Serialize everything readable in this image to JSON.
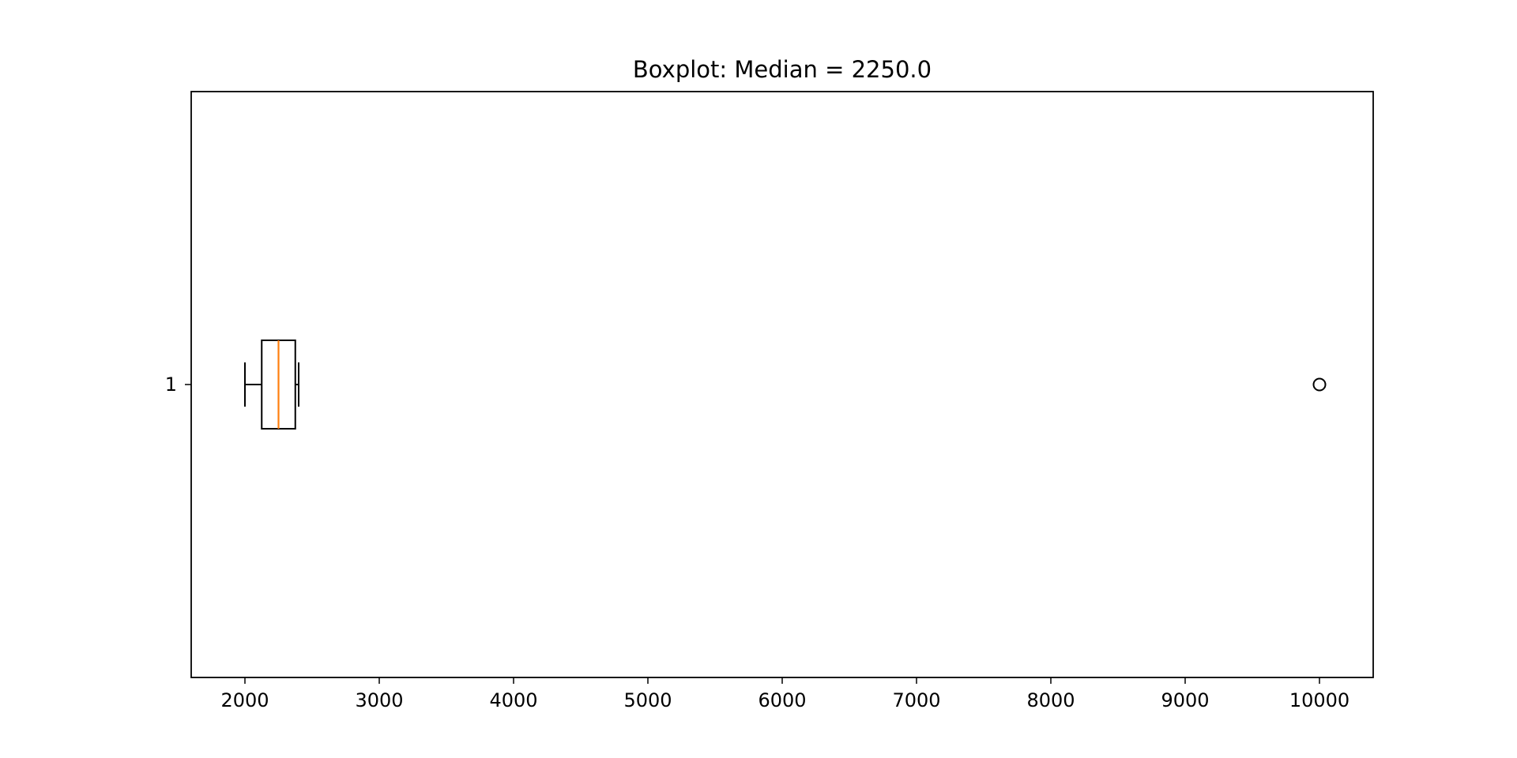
{
  "chart_data": {
    "type": "boxplot",
    "orientation": "horizontal",
    "title": "Boxplot: Median = 2250.0",
    "xlabel": "",
    "ylabel": "",
    "xlim": [
      1600,
      10400
    ],
    "xticks": [
      2000,
      3000,
      4000,
      5000,
      6000,
      7000,
      8000,
      9000,
      10000
    ],
    "xtick_labels": [
      "2000",
      "3000",
      "4000",
      "5000",
      "6000",
      "7000",
      "8000",
      "9000",
      "10000"
    ],
    "categories": [
      "1"
    ],
    "boxes": [
      {
        "category": "1",
        "whisker_low": 2000,
        "q1": 2125,
        "median": 2250,
        "q3": 2375,
        "whisker_high": 2400,
        "outliers": [
          10000
        ]
      }
    ],
    "grid": false,
    "legend": "none",
    "colors": {
      "box": "#000000",
      "median": "#ff7f0e",
      "whisker": "#000000",
      "outlier": "#000000"
    }
  }
}
